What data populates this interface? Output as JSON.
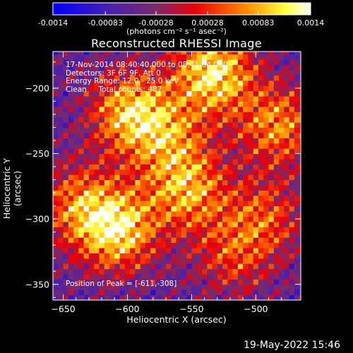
{
  "colorbar": {
    "ticks": [
      "-0.0014",
      "-0.00083",
      "-0.00028",
      "0.00028",
      "0.00083",
      "0.0014"
    ],
    "tick_values": [
      -0.0014,
      -0.00083,
      -0.00028,
      0.00028,
      0.00083,
      0.0014
    ],
    "units": "(photons cm⁻² s⁻¹ asec⁻²)",
    "colors": [
      "#0000ff",
      "#5a2ea8",
      "#ff0000",
      "#ff8c00",
      "#ffff40",
      "#ffffff"
    ]
  },
  "annotations": {
    "line1": "17-Nov-2014 08:40:40.000 to 08:41:04.000",
    "line2": "Detectors: 3F 6F 9F, Att 0",
    "line3": "Energy Range: 12.0 - 25.0 keV",
    "line4": "Clean     Total counts: 487.",
    "peak": "Position of Peak = [-611,-308]"
  },
  "timestamp": "19-May-2022 15:46",
  "chart_data": {
    "type": "heatmap",
    "title": "Reconstructed RHESSI Image",
    "xlabel": "Heliocentric X (arcsec)",
    "ylabel": "Heliocentric Y (arcsec)",
    "xlim": [
      -658,
      -465
    ],
    "ylim": [
      -362,
      -172
    ],
    "x_ticks": [
      -650,
      -600,
      -550,
      -500
    ],
    "y_ticks": [
      -350,
      -300,
      -250,
      -200
    ],
    "color_range": [
      -0.0014,
      0.0014
    ],
    "peak": [
      -611,
      -308
    ],
    "hotspots": [
      {
        "x": -535,
        "y": -190,
        "intensity": 1.0
      },
      {
        "x": -600,
        "y": -220,
        "intensity": 0.85
      },
      {
        "x": -610,
        "y": -310,
        "intensity": 0.95
      },
      {
        "x": -555,
        "y": -280,
        "intensity": 0.75
      },
      {
        "x": -485,
        "y": -230,
        "intensity": 0.7
      },
      {
        "x": -640,
        "y": -290,
        "intensity": 0.6
      },
      {
        "x": -570,
        "y": -240,
        "intensity": 0.55
      },
      {
        "x": -520,
        "y": -330,
        "intensity": 0.45
      },
      {
        "x": -495,
        "y": -300,
        "intensity": 0.5
      }
    ],
    "background_level": -0.0003
  }
}
